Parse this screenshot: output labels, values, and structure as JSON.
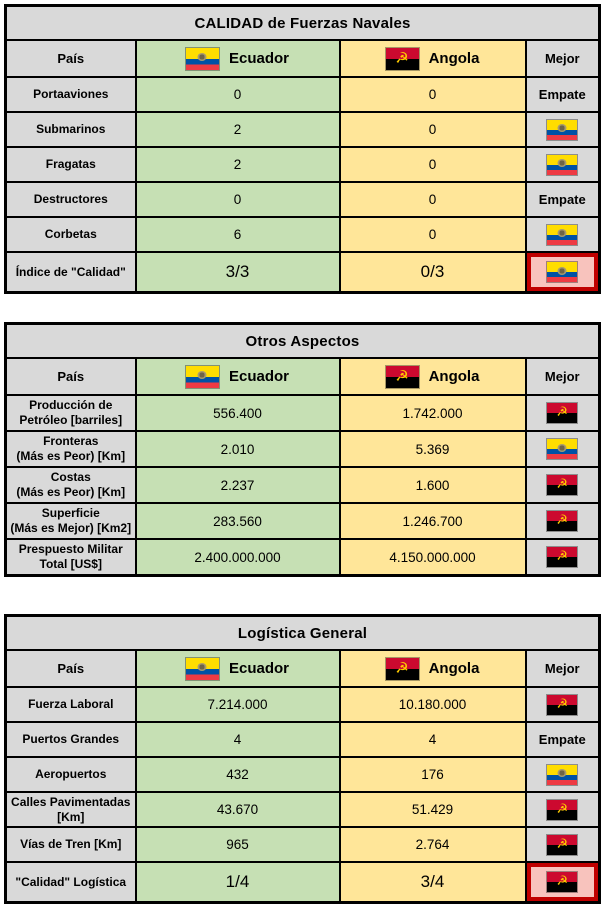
{
  "columns": {
    "pais": "País",
    "ecuador": "Ecuador",
    "angola": "Angola",
    "mejor": "Mejor"
  },
  "labels": {
    "empate": "Empate"
  },
  "colors": {
    "label_bg": "#d9d9d9",
    "ecuador_col_bg": "#c6e0b4",
    "angola_col_bg": "#ffe699",
    "highlight_bg": "#f8c3bd",
    "highlight_border": "#c00000",
    "table_border": "#000000",
    "ecuador_flag_yellow": "#ffdd00",
    "ecuador_flag_blue": "#0052a5",
    "ecuador_flag_red": "#ee3a43",
    "angola_flag_red": "#cc092f",
    "angola_flag_black": "#000000",
    "angola_flag_emblem": "#ffcb00"
  },
  "tables": [
    {
      "title": "CALIDAD de Fuerzas Navales",
      "rows": [
        {
          "label": "Portaaviones",
          "ecuador": "0",
          "angola": "0",
          "mejor": "empate"
        },
        {
          "label": "Submarinos",
          "ecuador": "2",
          "angola": "0",
          "mejor": "ecuador"
        },
        {
          "label": "Fragatas",
          "ecuador": "2",
          "angola": "0",
          "mejor": "ecuador"
        },
        {
          "label": "Destructores",
          "ecuador": "0",
          "angola": "0",
          "mejor": "empate"
        },
        {
          "label": "Corbetas",
          "ecuador": "6",
          "angola": "0",
          "mejor": "ecuador"
        },
        {
          "label": "Índice de \"Calidad\"",
          "ecuador": "3/3",
          "angola": "0/3",
          "mejor": "ecuador",
          "highlight": true
        }
      ]
    },
    {
      "title": "Otros Aspectos",
      "rows": [
        {
          "label": "Producción de\nPetróleo [barriles]",
          "ecuador": "556.400",
          "angola": "1.742.000",
          "mejor": "angola"
        },
        {
          "label": "Fronteras\n(Más es Peor) [Km]",
          "ecuador": "2.010",
          "angola": "5.369",
          "mejor": "ecuador"
        },
        {
          "label": "Costas\n(Más es Peor) [Km]",
          "ecuador": "2.237",
          "angola": "1.600",
          "mejor": "angola"
        },
        {
          "label": "Superficie\n(Más es Mejor) [Km2]",
          "ecuador": "283.560",
          "angola": "1.246.700",
          "mejor": "angola"
        },
        {
          "label": "Prespuesto Militar\nTotal [US$]",
          "ecuador": "2.400.000.000",
          "angola": "4.150.000.000",
          "mejor": "angola"
        }
      ]
    },
    {
      "title": "Logística General",
      "rows": [
        {
          "label": "Fuerza Laboral",
          "ecuador": "7.214.000",
          "angola": "10.180.000",
          "mejor": "angola"
        },
        {
          "label": "Puertos Grandes",
          "ecuador": "4",
          "angola": "4",
          "mejor": "empate"
        },
        {
          "label": "Aeropuertos",
          "ecuador": "432",
          "angola": "176",
          "mejor": "ecuador"
        },
        {
          "label": "Calles Pavimentadas\n[Km]",
          "ecuador": "43.670",
          "angola": "51.429",
          "mejor": "angola"
        },
        {
          "label": "Vías de Tren [Km]",
          "ecuador": "965",
          "angola": "2.764",
          "mejor": "angola"
        },
        {
          "label": "\"Calidad\" Logística",
          "ecuador": "1/4",
          "angola": "3/4",
          "mejor": "angola",
          "highlight": true
        }
      ]
    }
  ]
}
